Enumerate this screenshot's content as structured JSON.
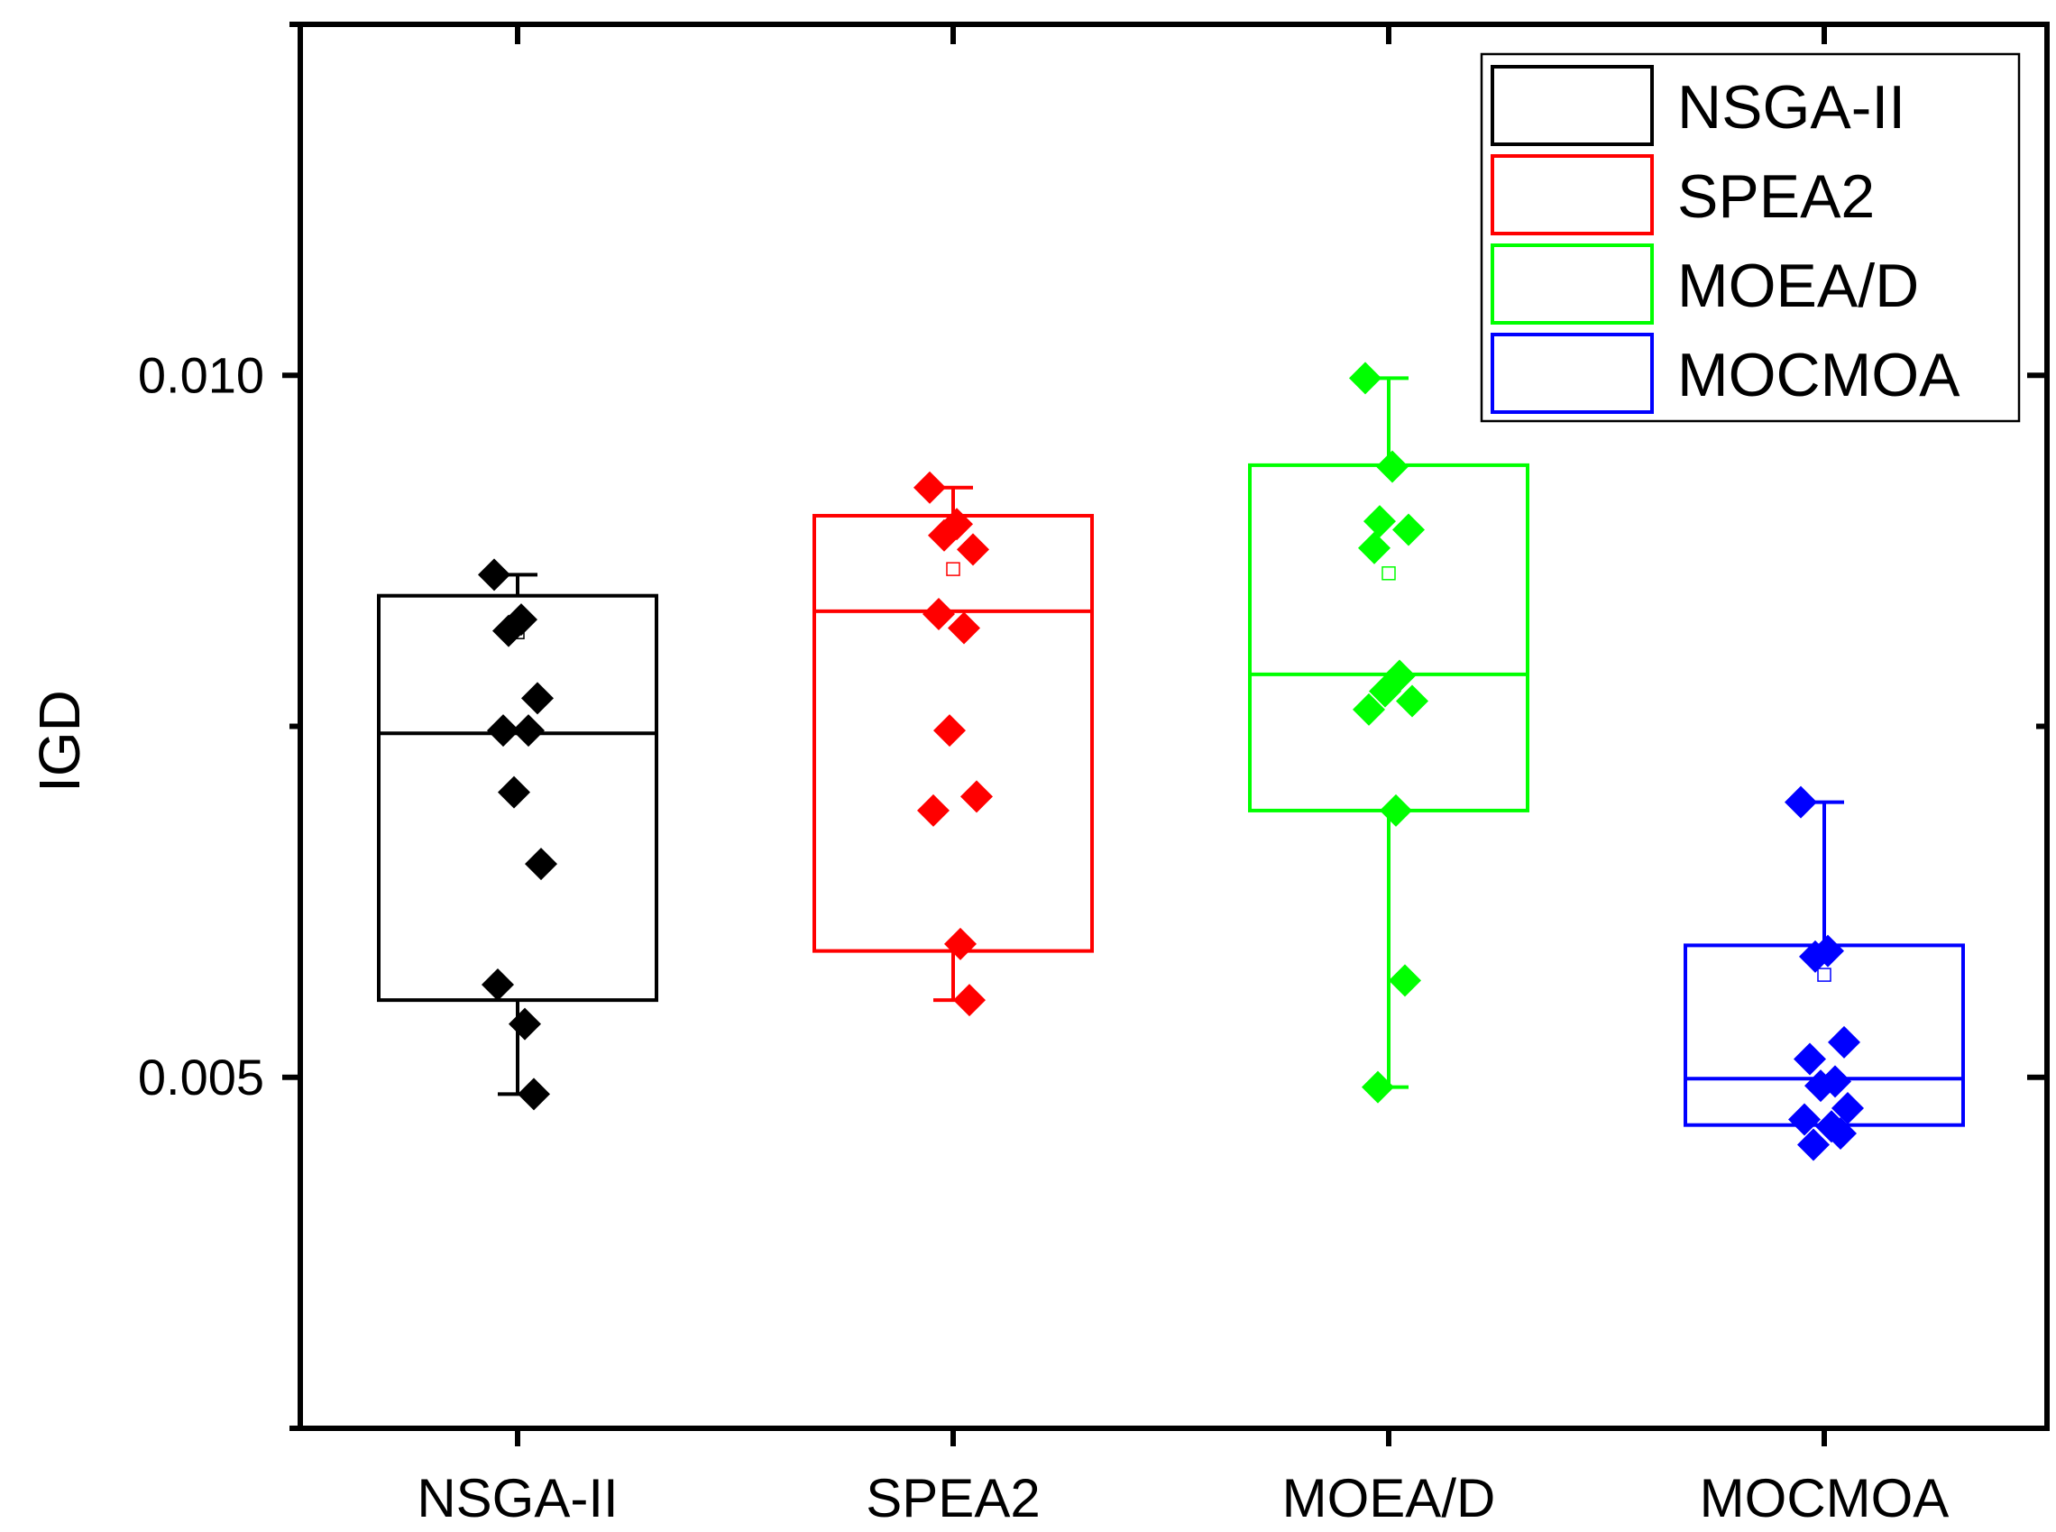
{
  "chart_data": {
    "type": "box",
    "title": "",
    "xlabel": "",
    "ylabel": "IGD",
    "ylim": [
      0.0025,
      0.0125
    ],
    "yticks": [
      0.005,
      0.01
    ],
    "ytick_labels": [
      "0.005",
      "0.010"
    ],
    "minor_yticks": [
      0.0025,
      0.0075,
      0.0125
    ],
    "legend_position": "top-right",
    "categories": [
      "NSGA-II",
      "SPEA2",
      "MOEA/D",
      "MOCMOA"
    ],
    "series": [
      {
        "name": "NSGA-II",
        "color": "#000000",
        "box": {
          "q1": 0.00555,
          "median": 0.00745,
          "q3": 0.00843,
          "mean": 0.00817
        },
        "whisker": {
          "low": 0.00488,
          "high": 0.00858
        },
        "points": [
          0.00858,
          0.00826,
          0.00818,
          0.0077,
          0.00747,
          0.00747,
          0.00703,
          0.00652,
          0.00566,
          0.00538,
          0.00488
        ]
      },
      {
        "name": "SPEA2",
        "color": "#ff0000",
        "box": {
          "q1": 0.0059,
          "median": 0.00832,
          "q3": 0.009,
          "mean": 0.00862
        },
        "whisker": {
          "low": 0.00555,
          "high": 0.0092
        },
        "points": [
          0.0092,
          0.00894,
          0.00886,
          0.00876,
          0.0083,
          0.0082,
          0.00747,
          0.007,
          0.0069,
          0.00595,
          0.00555
        ]
      },
      {
        "name": "MOEA/D",
        "color": "#00ff00",
        "box": {
          "q1": 0.0069,
          "median": 0.00787,
          "q3": 0.00936,
          "mean": 0.00859
        },
        "whisker": {
          "low": 0.00493,
          "high": 0.00998
        },
        "points": [
          0.00998,
          0.00935,
          0.00896,
          0.0089,
          0.00877,
          0.00786,
          0.00775,
          0.00768,
          0.00762,
          0.0069,
          0.00569,
          0.00493
        ]
      },
      {
        "name": "MOCMOA",
        "color": "#0000ff",
        "box": {
          "q1": 0.00466,
          "median": 0.00499,
          "q3": 0.00594,
          "mean": 0.00573
        },
        "whisker": {
          "low": 0.00466,
          "high": 0.00696
        },
        "points": [
          0.00696,
          0.0059,
          0.00586,
          0.00525,
          0.00513,
          0.00497,
          0.00494,
          0.00478,
          0.0047,
          0.00465,
          0.0046,
          0.00452
        ]
      }
    ]
  }
}
